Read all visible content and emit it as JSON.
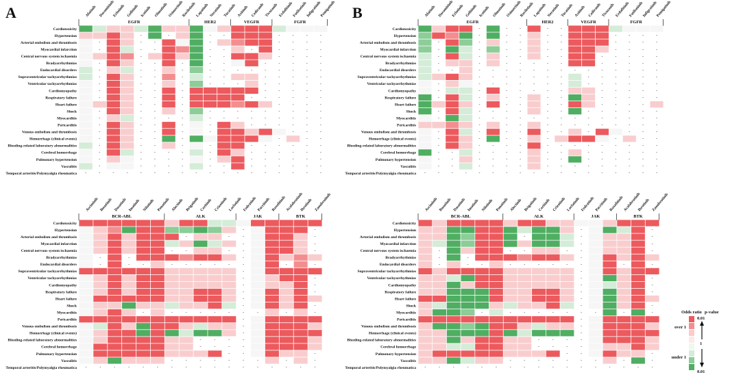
{
  "panels": [
    {
      "id": "A",
      "label": "A"
    },
    {
      "id": "B",
      "label": "B"
    }
  ],
  "colors": {
    "red_strong": "#ec5a5e",
    "red_mid": "#f38e90",
    "red_light": "#f9cdce",
    "green_strong": "#4fae62",
    "green_mid": "#8ccd98",
    "green_light": "#d4ecd8",
    "empty": "#f6f6f6"
  },
  "events": [
    "Cardiotoxicity",
    "Hypertension",
    "Arterial embolism and thrombosis",
    "Myocardial infarction",
    "Central nervous system ischaemia",
    "Bradyarrhythmias",
    "Endocardial disorders",
    "Supraventricular tachyarrhythmias",
    "Ventricular tachyarrhythmias",
    "Cardiomyopathy",
    "Respiratory failure",
    "Heart failure",
    "Shock",
    "Myocarditis",
    "Pericarditis",
    "Venous embolism and thrombosis",
    "Hemorrhage (clinical events)",
    "Bleeding-related laboratory abnormalities",
    "Cerebral hemorrhage",
    "Pulmonary hypertension",
    "Vasculitis",
    "Temporal arteritis/Polymyalgia rheumatica"
  ],
  "top_drugs": [
    "Afatinib",
    "Dacomitinib",
    "Erlotinib",
    "Gefitinib",
    "Icotinib",
    "Olmutinib",
    "Osimertinib",
    "Rociletinib",
    "Lapatinib",
    "Neratinib",
    "Tucatinib",
    "Axitinib",
    "Cediranib",
    "Tivozanib",
    "Erdafitinib",
    "Futibatinib",
    "Infigratinib",
    "Pemigatinib"
  ],
  "top_groups": [
    {
      "name": "EGFR",
      "start": 0,
      "end": 7
    },
    {
      "name": "HER2",
      "start": 8,
      "end": 10
    },
    {
      "name": "VEGFR",
      "start": 11,
      "end": 13
    },
    {
      "name": "FGFR",
      "start": 14,
      "end": 17
    }
  ],
  "bottom_drugs": [
    "Asciminib",
    "Bosutinib",
    "Dasatinib",
    "Imatinib",
    "Nilotinib",
    "Ponatinib",
    "Alectinib",
    "Brigatinib",
    "Ceritinib",
    "Crizotinib",
    "Lorlatinib",
    "Fedratinib",
    "Pacritinib",
    "Ruxolitinib",
    "Acalabrutinib",
    "Ibrutinib",
    "Zanubrutinib"
  ],
  "bottom_groups": [
    {
      "name": "BCR-ABL",
      "start": 0,
      "end": 5
    },
    {
      "name": "ALK",
      "start": 6,
      "end": 10
    },
    {
      "name": "JAK",
      "start": 11,
      "end": 13
    },
    {
      "name": "BTK",
      "start": 14,
      "end": 16
    }
  ],
  "legend": {
    "title_left": "Odds ratio",
    "title_right": "p-value",
    "over": "over 1",
    "under": "under 1",
    "p_top": "0.01",
    "p_mid": "1",
    "p_bottom": "0.01"
  },
  "chart_data": [
    {
      "type": "heatmap",
      "panel": "A",
      "title": "Panel A - EGFR / HER2 / VEGFR / FGFR inhibitors",
      "value_scale": "R3 strong over 1, R2 over 1, R1 weak over 1, G3 strong under 1, G2 under 1, G1 weak under 1, E not significant, D no report (-)",
      "rows": [
        "G3 G1 R1 R1 G1 G3 R1 R1 G3 E R1 R3 R3 R3 G1 E E E",
        "R1 R1 R3 R1 D G3 D R1 G3 D D R3 R3 R3 D D D D",
        "E D R3 R1 D D R3 E G3 D R1 R2 R3 R3 D D D D",
        "E D R3 G1 D D R3 R2 G3 D D R1 D R3 D D D D",
        "E R1 R3 R2 D R1 R3 R1 G3 D D R3 R3 R1 D D D D",
        "E D R3 R1 D D R3 D G3 D D E R3 D D D D D",
        "G1 D R1 G1 D D R1 D G2 D D D D D D D D D",
        "G1 D R3 R1 D D R2 D G1 D D R1 R1 D D D D D",
        "E D R3 R1 D D R1 D G2 D D D R1 D D D D D",
        "E D R3 R1 D D R3 D R3 R3 R3 R3 R3 D D D D D",
        "E D R3 R1 D D R3 D R3 R3 R3 R3 D D D D D D",
        "E R1 R3 R1 D D R3 D R3 R3 R3 R2 R3 R1 D D D D",
        "E D R3 R1 D D R1 D G2 D D D D D D D D D",
        "E D R1 G1 D D D D G1 D D D D D D D D D",
        "E D R3 R1 D D R3 D E D R3 R1 D D D D D D",
        "E D R3 R1 D D R3 D E D R3 R3 R1 R3 E D D D",
        "E D R3 R1 D D G3 D G3 E R3 R3 R3 E D R1 D D",
        "G1 D R3 R1 D D R1 D E D R3 R3 D D D D D D",
        "E D R3 G1 D D D D G1 D R3 R1 D D D D D D",
        "E D R1 E D D D D E D R1 R3 D D D D D D",
        "G1 D E E D D D D G1 D D R3 D D D D D D",
        "D D D D D D D D D D D D D D D D D D"
      ]
    },
    {
      "type": "heatmap",
      "panel": "A",
      "title": "Panel A - BCR-ABL / ALK / JAK / BTK inhibitors",
      "rows": [
        "R3 R3 R3 R3 R3 R3 R1 R3 R3 G1 G1 E R3 R3 R3 R3 R3",
        "E R1 R2 G3 R3 R3 G2 G2 G3 G2 R1 D E R3 R3 R3 D",
        "E R1 R3 R1 R3 R3 R3 D R1 R1 D D E R3 R3 R1 D",
        "E R1 R3 R1 R3 R3 G1 R1 G3 G1 R1 D E R3 R3 R1 D",
        "E R1 R3 R1 R3 R3 D D R1 R1 D D E R3 R3 R1 D",
        "E D R3 D R3 R3 R3 R2 R3 R3 R1 D E R3 R1 R2 R1",
        "E D R3 D D R1 D D D D D D E R3 D R2 D",
        "R3 R3 R3 R3 R3 R3 R1 R1 R1 R1 R1 D E R3 R3 R3 R3",
        "E R1 R3 R1 R3 R3 R1 R1 R1 R1 R1 D E R1 R3 R3 D",
        "E R1 R3 R1 R3 R3 R1 R1 R1 R1 R1 D E R1 R1 R3 D",
        "E R1 R3 R1 R3 R3 R1 R1 R3 R3 R1 D E R3 R1 R3 D",
        "E R3 R3 R3 R3 R3 R1 R1 R3 R3 R1 D E R3 R1 R3 R1",
        "E R1 R1 G3 R1 R1 G1 R1 R1 R3 G1 D E R3 R1 R3 D",
        "E R1 R3 R1 D R1 D D D D D D D R1 D R1 D",
        "R3 R3 R3 R3 R3 R3 R3 R3 R3 R3 R3 D E R3 R3 R3 R3",
        "E G1 R3 R1 G3 R3 R3 R1 G1 R1 R1 D E R3 R3 R3 R1",
        "E R1 R3 R3 G3 R3 G3 G1 G3 G3 R1 D E R3 R3 R3 R3",
        "E R1 R3 R3 R3 R3 R1 R1 D D D D E R3 R3 R3 R1",
        "E R3 R3 R3 R3 R3 R1 R1 D D D D E R3 R3 R3 R1",
        "E R3 R3 R3 R3 R3 R1 R1 R1 R3 D D E R3 R1 R1 D",
        "E R1 G3 R1 R1 R1 D D D D D D D R1 D R1 D",
        "D D D D D D D D D D D D D D D D D"
      ]
    },
    {
      "type": "heatmap",
      "panel": "B",
      "title": "Panel B - EGFR / HER2 / VEGFR / FGFR inhibitors",
      "rows": [
        "G3 R1 R3 R3 D G3 D D R3 D D R3 R3 R3 G1 E E E",
        "G2 R3 R2 G3 D G3 D D R1 D D R3 R3 R3 D D D D",
        "G2 D R3 G2 D R1 D D R1 D D R3 R3 R3 D D D D",
        "G2 D G3 G1 D G2 D D R1 D D R3 R3 R1 D D D D",
        "G1 D R3 G1 D R1 D D R1 D D R3 R3 D D D D D",
        "G1 D R1 R1 D R1 D D D D D R3 R3 D D D D D",
        "G1 D D R1 D D D D D D D D D D D D D D",
        "G1 R1 R3 R1 D D D D D D D G1 D D D D D D",
        "E D R1 E D D D D D D D G1 D D D D D D",
        "E D G1 G1 D R3 D D D D D R1 R1 D D D D D",
        "G3 D R3 G1 D R1 D D R1 D D G3 R1 D D D D D",
        "G3 R1 R3 R1 D R3 D D R1 D D R3 R1 D D D D R1",
        "G3 D R3 G1 D D D D R1 D D G3 D D D D D D",
        "E D G3 G1 D D D D D D D D D D D D D D",
        "R1 R1 R2 R1 D R1 D D R1 D D D D D D D D D",
        "E D R3 G1 D R3 D D R3 D D R1 D R3 E D D D",
        "E D R3 R1 D G3 D D R1 D R1 R3 R3 E D R1 D D",
        "E D R3 R1 D D D D R3 D D D D D D D D D",
        "G3 D D G1 D D D D R1 D D R1 D D D D D D",
        "E D D R1 D D D D R1 D D G3 D D D D D D",
        "E D D G1 D D D D R1 D D D D D D D D D",
        "D D D D D D D D D D D D D D D D D D"
      ]
    },
    {
      "type": "heatmap",
      "panel": "B",
      "title": "Panel B - BCR-ABL / ALK / JAK / BTK inhibitors",
      "rows": [
        "R3 R1 R3 R3 R3 R3 R1 R3 R3 R1 R1 E E R1 R3 R3 R3",
        "R1 R1 G3 G3 R3 R3 G3 G1 G3 G3 R1 D E G3 G1 R3 D",
        "R1 R1 G3 G2 R3 R3 G3 D G3 G3 G1 D E R1 R1 R3 D",
        "R1 G1 G3 G2 R3 R3 G3 R1 G3 G3 G1 D E R1 R1 R3 D",
        "R1 D G3 R1 R3 R3 D D R1 R1 D D E R1 R1 R3 D",
        "R1 D G3 D R3 R3 R3 R2 R3 R3 R1 D E R3 R1 R3 R1",
        "R1 D R1 D D R1 D D D D D D E R3 D R3 D",
        "R3 R1 R3 R3 R3 R3 R1 R1 R1 R1 R1 D E R3 R1 R3 R3",
        "R1 R1 G1 G3 R3 R3 R1 R1 R1 R1 R1 D E G3 R1 R3 D",
        "R1 R1 G3 R1 R3 R3 R1 R1 R1 R1 R1 D E G1 R1 R3 D",
        "R1 R1 G3 G3 G3 R3 R1 R1 R3 R3 R1 D E G3 R1 R3 D",
        "R3 R3 G3 G3 G3 R3 R1 R1 R3 R3 R1 D E G3 R1 R3 R1",
        "R1 G1 G3 G3 G3 R1 G1 R1 R1 R3 G1 D E G3 R1 R3 D",
        "R1 G3 G3 G2 D G1 D D D D D D D G3 D G3 D",
        "R3 R3 R3 R3 R3 R3 R3 R3 R3 R3 R3 D E R3 R3 R3 R3",
        "R1 G3 G3 G2 G3 R3 R3 R1 G1 R1 R1 D E R3 R3 R3 R1",
        "R1 R1 G3 G3 G3 R3 G3 G1 G3 G3 G3 D E R3 R3 R3 R3",
        "R1 R1 G3 R1 R3 R3 R1 R1 D D D D E R3 R3 R3 R1",
        "R1 R1 G1 G1 R3 R3 R1 R1 D D D D E R1 R1 R3 R1",
        "R1 R3 R3 R3 R3 R3 R1 R1 R1 R3 D D E R3 R1 R1 D",
        "R1 R1 G3 G1 R1 R1 D D D D D D D R1 D G3 D",
        "D D D D D D D D D D D D D D D D D"
      ]
    }
  ]
}
